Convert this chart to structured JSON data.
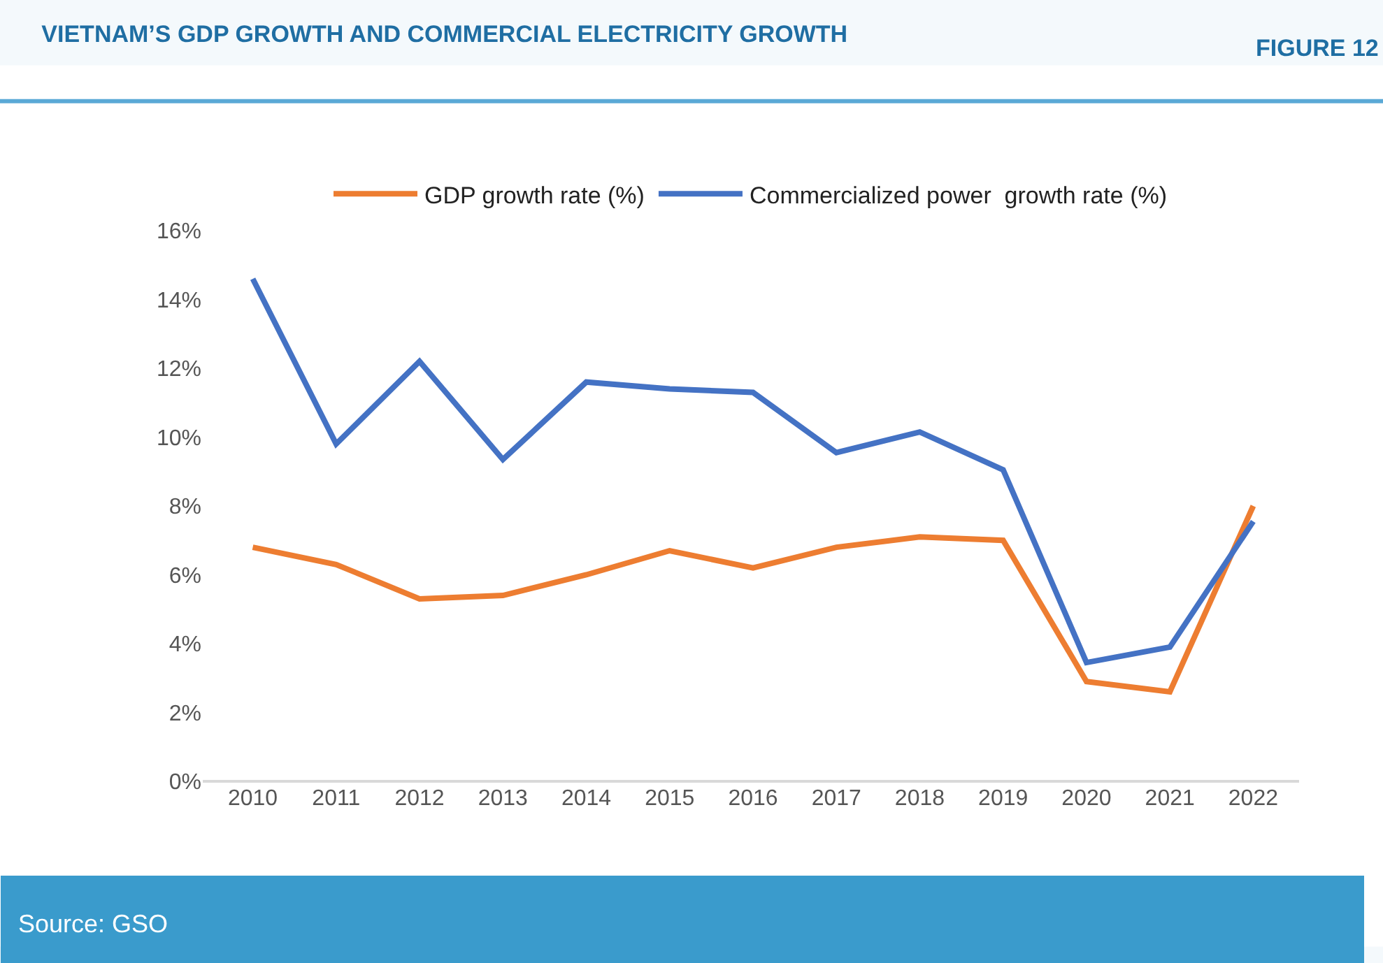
{
  "chart_data": {
    "type": "line",
    "title": "VIETNAM’S GDP GROWTH AND COMMERCIAL ELECTRICITY GROWTH",
    "categories": [
      "2010",
      "2011",
      "2012",
      "2013",
      "2014",
      "2015",
      "2016",
      "2017",
      "2018",
      "2019",
      "2020",
      "2021",
      "2022"
    ],
    "series": [
      {
        "name": "GDP growth rate (%)",
        "color": "#ed7d31",
        "values": [
          6.8,
          6.3,
          5.3,
          5.4,
          6.0,
          6.7,
          6.2,
          6.8,
          7.1,
          7.0,
          2.9,
          2.6,
          8.0
        ]
      },
      {
        "name": "Commercialized power  growth rate (%)",
        "color": "#4472c4",
        "values": [
          14.6,
          9.8,
          12.2,
          9.35,
          11.6,
          11.4,
          11.3,
          9.55,
          10.15,
          9.05,
          3.45,
          3.9,
          7.55
        ]
      }
    ],
    "ylim": [
      0,
      16
    ],
    "yticks": [
      {
        "value": 0,
        "label": "0%"
      },
      {
        "value": 2,
        "label": "2%"
      },
      {
        "value": 4,
        "label": "4%"
      },
      {
        "value": 6,
        "label": "6%"
      },
      {
        "value": 8,
        "label": "8%"
      },
      {
        "value": 10,
        "label": "10%"
      },
      {
        "value": 12,
        "label": "12%"
      },
      {
        "value": 14,
        "label": "14%"
      },
      {
        "value": 16,
        "label": "16%"
      }
    ],
    "grid": false,
    "legend": "top",
    "marker": "none",
    "line_style": "solid",
    "annotations": [
      "FIGURE 12",
      "Source: GSO"
    ]
  }
}
